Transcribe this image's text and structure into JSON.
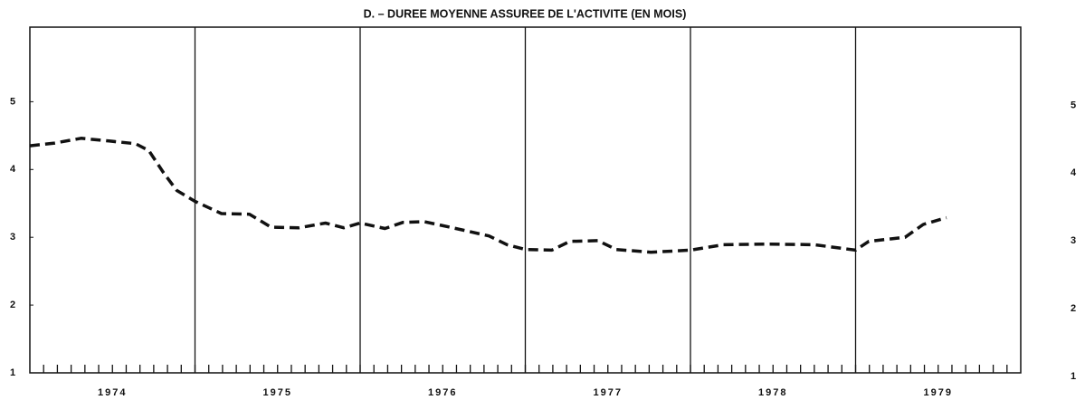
{
  "chart_data": {
    "type": "line",
    "title": "D. – DUREE MOYENNE ASSUREE DE L'ACTIVITE (EN MOIS)",
    "xlim": [
      1974,
      1980
    ],
    "ylim": [
      1,
      6.1
    ],
    "yticks": [
      1,
      2,
      3,
      4,
      5
    ],
    "xticks": [
      {
        "value": 1974.5,
        "label": "1974"
      },
      {
        "value": 1975.5,
        "label": "1975"
      },
      {
        "value": 1976.5,
        "label": "1976"
      },
      {
        "value": 1977.5,
        "label": "1977"
      },
      {
        "value": 1978.5,
        "label": "1978"
      },
      {
        "value": 1979.5,
        "label": "1979"
      }
    ],
    "xgrid": [
      1975,
      1976,
      1977,
      1978,
      1979
    ],
    "xminor_per_year": 12,
    "series": [
      {
        "color": "#111111",
        "x": [
          1974.0,
          1974.15,
          1974.31,
          1974.48,
          1974.64,
          1974.72,
          1974.81,
          1974.89,
          1975.0,
          1975.16,
          1975.33,
          1975.46,
          1975.63,
          1975.79,
          1975.9,
          1976.0,
          1976.15,
          1976.26,
          1976.39,
          1976.56,
          1976.78,
          1976.89,
          1977.0,
          1977.16,
          1977.27,
          1977.44,
          1977.55,
          1977.76,
          1978.0,
          1978.2,
          1978.48,
          1978.75,
          1979.0,
          1979.08,
          1979.3,
          1979.41,
          1979.55
        ],
        "values": [
          4.35,
          4.39,
          4.46,
          4.42,
          4.38,
          4.28,
          3.95,
          3.69,
          3.53,
          3.35,
          3.34,
          3.15,
          3.14,
          3.21,
          3.14,
          3.21,
          3.13,
          3.22,
          3.23,
          3.14,
          3.02,
          2.89,
          2.82,
          2.81,
          2.94,
          2.95,
          2.82,
          2.78,
          2.81,
          2.89,
          2.9,
          2.89,
          2.81,
          2.94,
          3.0,
          3.19,
          3.29
        ]
      }
    ]
  }
}
